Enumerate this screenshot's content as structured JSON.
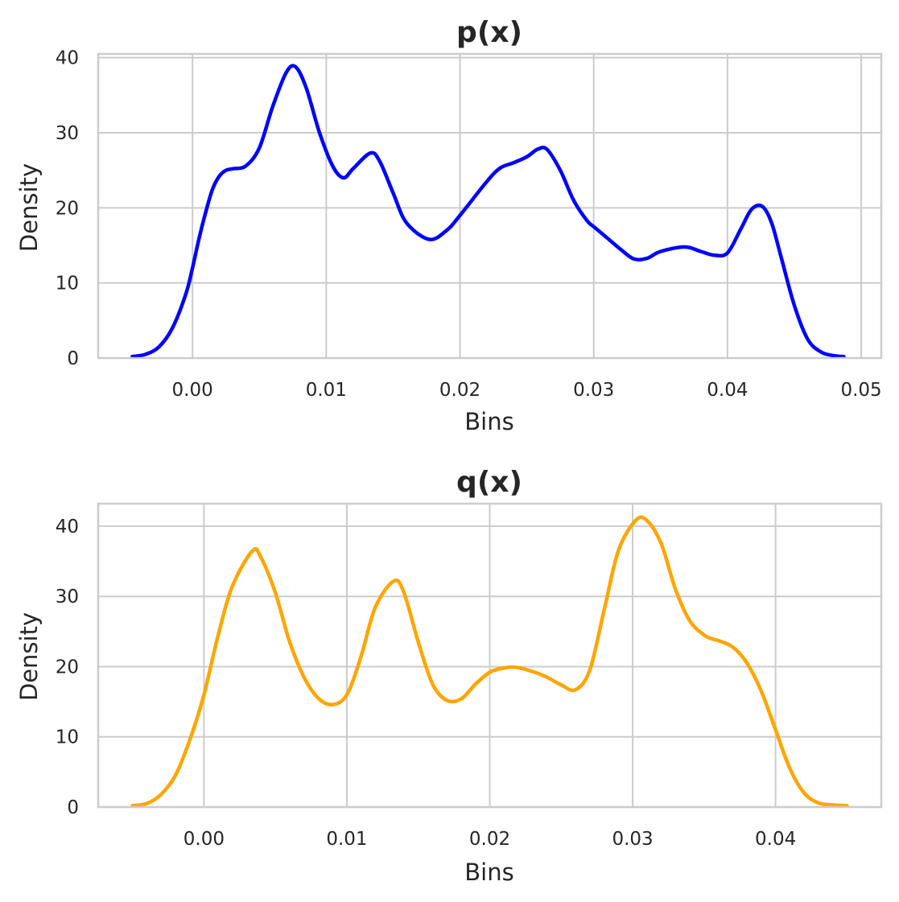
{
  "chart_data": [
    {
      "type": "line",
      "title": "p(x)",
      "xlabel": "Bins",
      "ylabel": "Density",
      "xlim": [
        -0.00705,
        0.0515
      ],
      "ylim": [
        0,
        40.5
      ],
      "xticks": [
        0.0,
        0.01,
        0.02,
        0.03,
        0.04,
        0.05
      ],
      "xtick_labels": [
        "0.00",
        "0.01",
        "0.02",
        "0.03",
        "0.04",
        "0.05"
      ],
      "yticks": [
        0,
        10,
        20,
        30,
        40
      ],
      "ytick_labels": [
        "0",
        "10",
        "20",
        "30",
        "40"
      ],
      "grid": true,
      "color": "#0000ff",
      "series": [
        {
          "x": [
            -0.0045,
            -0.0035,
            -0.0025,
            -0.0015,
            -0.0005,
            0.0,
            0.0005,
            0.001,
            0.0015,
            0.002,
            0.0025,
            0.003,
            0.004,
            0.005,
            0.006,
            0.007,
            0.0077,
            0.0085,
            0.0095,
            0.0105,
            0.0113,
            0.012,
            0.0133,
            0.014,
            0.015,
            0.016,
            0.0177,
            0.019,
            0.02,
            0.022,
            0.023,
            0.024,
            0.025,
            0.0258,
            0.0265,
            0.0275,
            0.0285,
            0.0295,
            0.03,
            0.031,
            0.032,
            0.033,
            0.034,
            0.035,
            0.0368,
            0.038,
            0.039,
            0.04,
            0.041,
            0.0418,
            0.0426,
            0.0433,
            0.044,
            0.045,
            0.046,
            0.047,
            0.048,
            0.0487
          ],
          "y": [
            0.2,
            0.5,
            1.5,
            4.0,
            8.5,
            12.0,
            16.0,
            19.5,
            22.5,
            24.2,
            25.0,
            25.2,
            25.6,
            28.0,
            33.5,
            38.0,
            38.8,
            36.0,
            30.0,
            25.5,
            24.0,
            25.2,
            27.3,
            26.2,
            22.0,
            18.0,
            15.8,
            17.0,
            19.0,
            23.5,
            25.3,
            26.0,
            26.8,
            27.8,
            27.8,
            25.0,
            21.0,
            18.3,
            17.5,
            16.0,
            14.5,
            13.2,
            13.3,
            14.2,
            14.8,
            14.2,
            13.7,
            14.0,
            17.2,
            19.8,
            20.2,
            18.0,
            13.5,
            7.0,
            2.5,
            0.8,
            0.3,
            0.2
          ]
        }
      ]
    },
    {
      "type": "line",
      "title": "q(x)",
      "xlabel": "Bins",
      "ylabel": "Density",
      "xlim": [
        -0.0074,
        0.0474
      ],
      "ylim": [
        0,
        43.2
      ],
      "xticks": [
        0.0,
        0.01,
        0.02,
        0.03,
        0.04
      ],
      "xtick_labels": [
        "0.00",
        "0.01",
        "0.02",
        "0.03",
        "0.04"
      ],
      "yticks": [
        0,
        10,
        20,
        30,
        40
      ],
      "ytick_labels": [
        "0",
        "10",
        "20",
        "30",
        "40"
      ],
      "grid": true,
      "color": "#ffa500",
      "series": [
        {
          "x": [
            -0.005,
            -0.004,
            -0.003,
            -0.002,
            -0.001,
            0.0,
            0.001,
            0.002,
            0.0034,
            0.004,
            0.005,
            0.006,
            0.007,
            0.008,
            0.009,
            0.01,
            0.011,
            0.012,
            0.0133,
            0.014,
            0.015,
            0.016,
            0.017,
            0.018,
            0.019,
            0.02,
            0.021,
            0.0218,
            0.023,
            0.024,
            0.025,
            0.026,
            0.027,
            0.028,
            0.029,
            0.0302,
            0.031,
            0.032,
            0.033,
            0.034,
            0.035,
            0.0355,
            0.036,
            0.037,
            0.038,
            0.039,
            0.04,
            0.041,
            0.042,
            0.043,
            0.044,
            0.045
          ],
          "y": [
            0.2,
            0.5,
            1.8,
            4.5,
            9.5,
            16.0,
            24.5,
            31.5,
            36.5,
            35.5,
            30.5,
            23.5,
            18.5,
            15.5,
            14.6,
            16.0,
            21.5,
            28.5,
            32.2,
            30.5,
            23.5,
            17.5,
            15.2,
            15.4,
            17.5,
            19.2,
            19.8,
            19.9,
            19.3,
            18.5,
            17.4,
            16.7,
            19.5,
            28.0,
            36.5,
            40.8,
            40.8,
            37.5,
            31.0,
            26.5,
            24.5,
            24.0,
            23.7,
            22.8,
            20.5,
            16.5,
            11.0,
            5.5,
            2.0,
            0.6,
            0.3,
            0.2
          ]
        }
      ]
    }
  ]
}
